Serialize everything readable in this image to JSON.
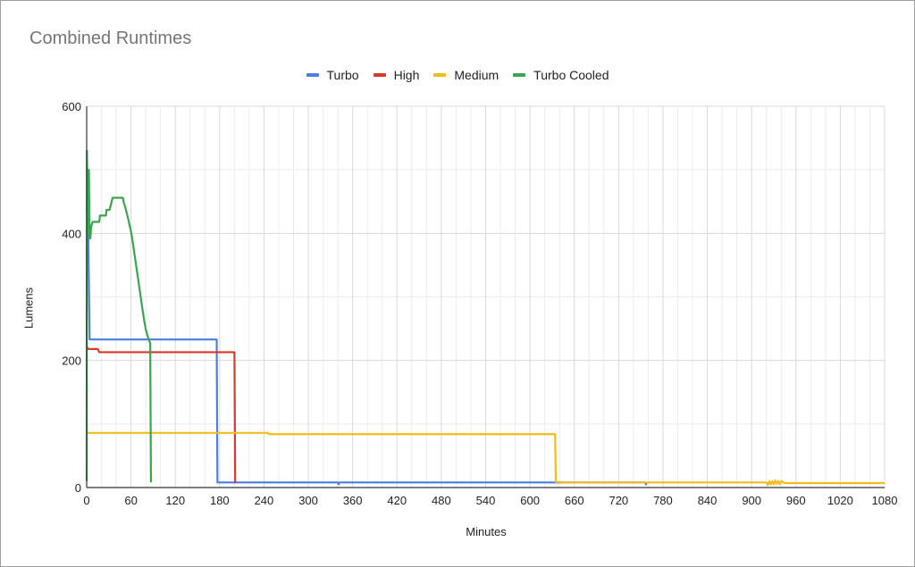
{
  "colors": {
    "turbo": "#4a7fdc",
    "high": "#d9392b",
    "medium": "#f2bd1c",
    "turbo_cooled": "#3aa451",
    "grid": "#d9d9d9",
    "axis": "#333333"
  },
  "chart_data": {
    "type": "line",
    "title": "Combined Runtimes",
    "xlabel": "Minutes",
    "ylabel": "Lumens",
    "xlim": [
      0,
      1080
    ],
    "ylim": [
      0,
      600
    ],
    "x_ticks": [
      0,
      60,
      120,
      180,
      240,
      300,
      360,
      420,
      480,
      540,
      600,
      660,
      720,
      780,
      840,
      900,
      960,
      1020,
      1080
    ],
    "y_ticks": [
      0,
      200,
      400,
      600
    ],
    "legend_position": "top",
    "grid": true,
    "series": [
      {
        "name": "Turbo",
        "color_key": "turbo",
        "points": [
          [
            0,
            440
          ],
          [
            2,
            410
          ],
          [
            4,
            233
          ],
          [
            60,
            233
          ],
          [
            120,
            233
          ],
          [
            176,
            233
          ],
          [
            177,
            8
          ],
          [
            240,
            8
          ],
          [
            340,
            8
          ],
          [
            341,
            5
          ],
          [
            342,
            8
          ],
          [
            500,
            8
          ],
          [
            636,
            8
          ],
          [
            700,
            8
          ],
          [
            756,
            8
          ],
          [
            757,
            5
          ],
          [
            758,
            8
          ]
        ]
      },
      {
        "name": "High",
        "color_key": "high",
        "points": [
          [
            0,
            222
          ],
          [
            2,
            218
          ],
          [
            15,
            218
          ],
          [
            17,
            213
          ],
          [
            60,
            213
          ],
          [
            120,
            213
          ],
          [
            200,
            213
          ],
          [
            201,
            8
          ],
          [
            202,
            8
          ]
        ]
      },
      {
        "name": "Medium",
        "color_key": "medium",
        "points": [
          [
            0,
            86
          ],
          [
            60,
            86
          ],
          [
            120,
            86
          ],
          [
            180,
            86
          ],
          [
            245,
            86
          ],
          [
            247,
            84
          ],
          [
            400,
            84
          ],
          [
            634,
            84
          ],
          [
            635,
            9
          ],
          [
            650,
            8
          ],
          [
            700,
            8
          ],
          [
            860,
            8
          ],
          [
            920,
            8
          ],
          [
            922,
            4
          ],
          [
            924,
            10
          ],
          [
            926,
            5
          ],
          [
            928,
            10
          ],
          [
            930,
            5
          ],
          [
            932,
            11
          ],
          [
            934,
            6
          ],
          [
            936,
            10
          ],
          [
            938,
            5
          ],
          [
            940,
            10
          ],
          [
            945,
            7
          ],
          [
            1000,
            7
          ],
          [
            1080,
            7
          ]
        ]
      },
      {
        "name": "Turbo Cooled",
        "color_key": "turbo_cooled",
        "points": [
          [
            0,
            10
          ],
          [
            0.3,
            530
          ],
          [
            1,
            470
          ],
          [
            2,
            400
          ],
          [
            3,
            500
          ],
          [
            4,
            395
          ],
          [
            5,
            392
          ],
          [
            6,
            410
          ],
          [
            8,
            418
          ],
          [
            17,
            418
          ],
          [
            18,
            428
          ],
          [
            26,
            428
          ],
          [
            27,
            437
          ],
          [
            31,
            437
          ],
          [
            33,
            446
          ],
          [
            35,
            456
          ],
          [
            49,
            456
          ],
          [
            50,
            449
          ],
          [
            52,
            442
          ],
          [
            54,
            433
          ],
          [
            56,
            424
          ],
          [
            58,
            413
          ],
          [
            60,
            403
          ],
          [
            62,
            389
          ],
          [
            64,
            373
          ],
          [
            66,
            357
          ],
          [
            68,
            341
          ],
          [
            70,
            325
          ],
          [
            72,
            309
          ],
          [
            74,
            293
          ],
          [
            76,
            277
          ],
          [
            78,
            262
          ],
          [
            80,
            249
          ],
          [
            82,
            240
          ],
          [
            84,
            233
          ],
          [
            86,
            227
          ],
          [
            87,
            8
          ]
        ]
      }
    ]
  }
}
